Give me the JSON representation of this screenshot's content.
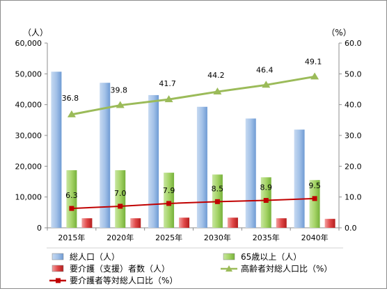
{
  "chart_data": {
    "type": "bar",
    "categories": [
      "2015年",
      "2020年",
      "2025年",
      "2030年",
      "2035年",
      "2040年"
    ],
    "left_axis": {
      "unit_label": "（人）",
      "ylim": [
        0,
        60000
      ],
      "ticks": [
        "0",
        "10,000",
        "20,000",
        "30,000",
        "40,000",
        "50,000",
        "60,000"
      ],
      "tick_values": [
        0,
        10000,
        20000,
        30000,
        40000,
        50000,
        60000
      ]
    },
    "right_axis": {
      "unit_label": "（%）",
      "ylim": [
        0,
        60
      ],
      "ticks": [
        "0.0",
        "10.0",
        "20.0",
        "30.0",
        "40.0",
        "50.0",
        "60.0"
      ],
      "tick_values": [
        0,
        10,
        20,
        30,
        40,
        50,
        60
      ]
    },
    "series": [
      {
        "name": "総人口（人）",
        "kind": "bar",
        "axis": "left",
        "color": "#8eb4e3",
        "values": [
          50700,
          47100,
          43100,
          39300,
          35500,
          31900
        ]
      },
      {
        "name": "65歳以上（人）",
        "kind": "bar",
        "axis": "left",
        "color": "#92d050",
        "values": [
          18700,
          18700,
          17900,
          17300,
          16400,
          15500
        ]
      },
      {
        "name": "要介護（支援）者数（人）",
        "kind": "bar",
        "axis": "left",
        "color": "#e23b3b",
        "values": [
          3100,
          3100,
          3300,
          3300,
          3100,
          2900
        ]
      },
      {
        "name": "高齢者対総人口比（%）",
        "kind": "line",
        "axis": "right",
        "color": "#9bbb59",
        "values": [
          36.8,
          39.8,
          41.7,
          44.2,
          46.4,
          49.1
        ],
        "labels": [
          "36.8",
          "39.8",
          "41.7",
          "44.2",
          "46.4",
          "49.1"
        ]
      },
      {
        "name": "要介護者等対総人口比（%）",
        "kind": "line",
        "axis": "right",
        "color": "#c00000",
        "values": [
          6.3,
          7.0,
          7.9,
          8.5,
          8.9,
          9.5
        ],
        "labels": [
          "6.3",
          "7.0",
          "7.9",
          "8.5",
          "8.9",
          "9.5"
        ]
      }
    ],
    "legend_position": "bottom",
    "grid": false
  }
}
